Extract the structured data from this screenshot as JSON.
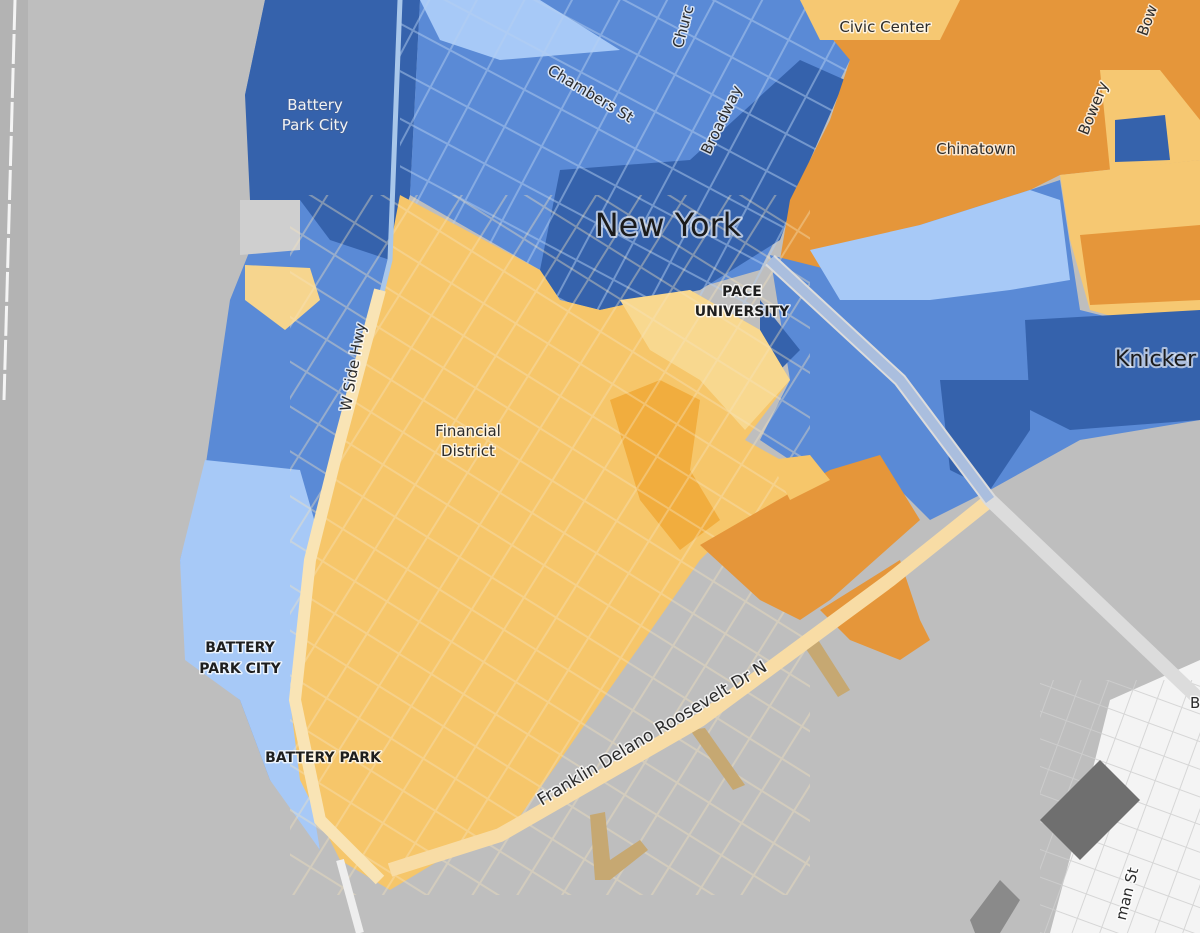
{
  "map": {
    "labels": {
      "civic_center": "Civic Center",
      "chambers_st": "Chambers St",
      "church": "Churc",
      "broadway": "Broadway",
      "bowery_top": "Bow",
      "bowery": "Bowery",
      "battery_park_city_small": [
        "Battery",
        "Park City"
      ],
      "chinatown": "Chinatown",
      "new_york": "New York",
      "pace_university": [
        "PACE",
        "UNIVERSITY"
      ],
      "knicker": "Knicker",
      "w_side_hwy": "W Side Hwy",
      "financial_district": [
        "Financial",
        "District"
      ],
      "battery_park_city": [
        "BATTERY",
        "PARK CITY"
      ],
      "battery_park": "BATTERY PARK",
      "fdr_drive": "Franklin Delano Roosevelt Dr N",
      "man_st": "man St",
      "b_cut": "B"
    }
  }
}
